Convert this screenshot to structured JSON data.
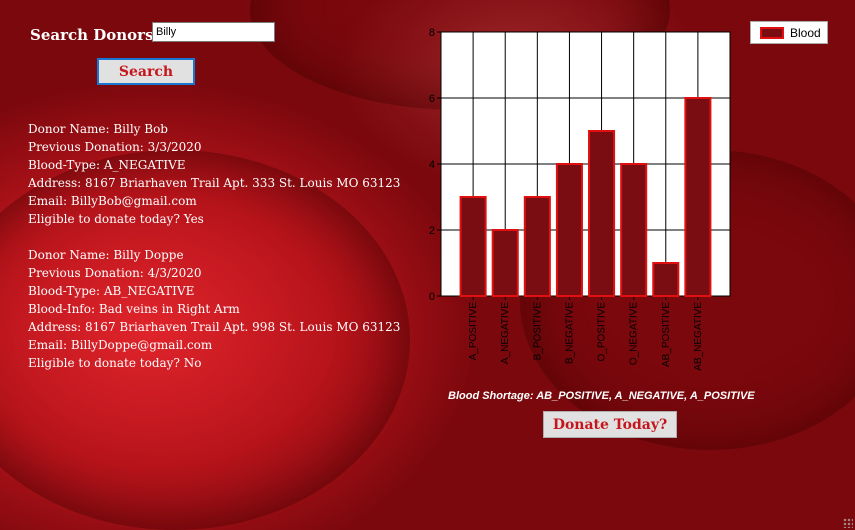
{
  "search": {
    "label": "Search Donors:",
    "value": "Billy",
    "button_label": "Search"
  },
  "donors": [
    {
      "lines": [
        "Donor Name: Billy Bob",
        "Previous Donation: 3/3/2020",
        "Blood-Type: A_NEGATIVE",
        "Address: 8167 Briarhaven Trail Apt. 333 St. Louis MO 63123",
        "Email: BillyBob@gmail.com",
        "Eligible to donate today? Yes"
      ]
    },
    {
      "lines": [
        "Donor Name: Billy Doppe",
        "Previous Donation: 4/3/2020",
        "Blood-Type: AB_NEGATIVE",
        "Blood-Info: Bad veins in Right Arm",
        "Address: 8167 Briarhaven Trail Apt. 998 St. Louis MO 63123",
        "Email: BillyDoppe@gmail.com",
        "Eligible to donate today? No"
      ]
    }
  ],
  "chart_data": {
    "type": "bar",
    "categories": [
      "A_POSITIVE",
      "A_NEGATIVE",
      "B_POSITIVE",
      "B_NEGATIVE",
      "O_POSITIVE",
      "O_NEGATIVE",
      "AB_POSITIVE",
      "AB_NEGATIVE"
    ],
    "series": [
      {
        "name": "Blood",
        "values": [
          3,
          2,
          3,
          4,
          5,
          4,
          1,
          6
        ]
      }
    ],
    "yticks": [
      "0",
      "2",
      "4",
      "6",
      "8"
    ],
    "ylim": [
      0,
      8
    ],
    "grid": true,
    "legend": "top-right",
    "bar_fill": "#7a0d12",
    "bar_stroke": "#e01010"
  },
  "shortage_text": "Blood Shortage: AB_POSITIVE, A_NEGATIVE,  A_POSITIVE",
  "donate_button_label": "Donate Today?"
}
